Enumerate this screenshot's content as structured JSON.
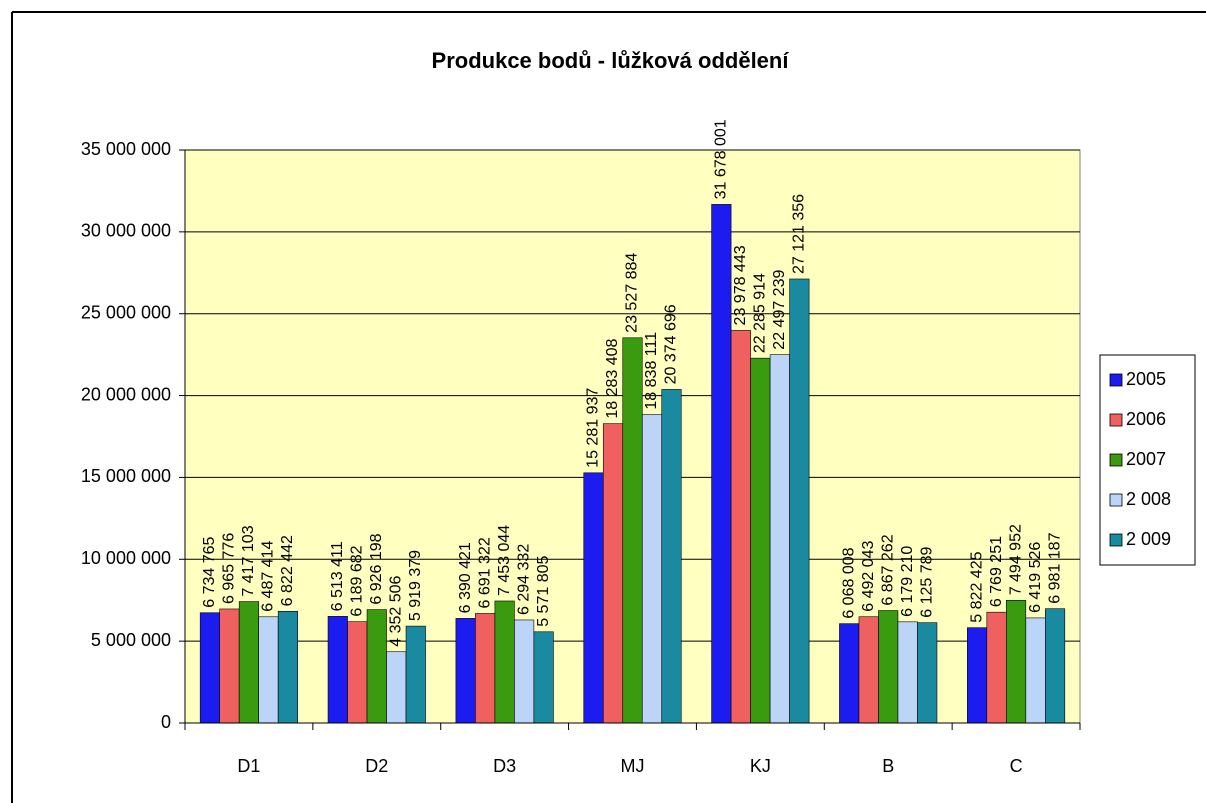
{
  "chart_data": {
    "type": "bar",
    "title": "Produkce bodů - lůžková oddělení",
    "categories": [
      "D1",
      "D2",
      "D3",
      "MJ",
      "KJ",
      "B",
      "C"
    ],
    "series": [
      {
        "name": "2005",
        "color": "#1c1cf0",
        "label_color": "#000000",
        "values": [
          6734765,
          6513411,
          6390421,
          15281937,
          31678001,
          6068008,
          5822425
        ],
        "value_labels": [
          "6 734 765",
          "6 513 411",
          "6 390 421",
          "15 281 937",
          "31 678 001",
          "6 068 008",
          "5 822 425"
        ]
      },
      {
        "name": "2006",
        "color": "#f06060",
        "label_color": "#000000",
        "values": [
          6965776,
          6189682,
          6691322,
          18283408,
          23978443,
          6492043,
          6769251
        ],
        "value_labels": [
          "6 965 776",
          "6 189 682",
          "6 691 322",
          "18 283 408",
          "23 978 443",
          "6 492 043",
          "6 769 251"
        ]
      },
      {
        "name": "2007",
        "color": "#3a9a10",
        "label_color": "#000000",
        "values": [
          7417103,
          6926198,
          7453044,
          23527884,
          22285914,
          6867262,
          7494952
        ],
        "value_labels": [
          "7 417 103",
          "6 926 198",
          "7 453 044",
          "23 527 884",
          "22 285 914",
          "6 867 262",
          "7 494 952"
        ]
      },
      {
        "name": "2 008",
        "color": "#bcd4f8",
        "label_color": "#000000",
        "values": [
          6487414,
          4352506,
          6294332,
          18838111,
          22497239,
          6179210,
          6419526
        ],
        "value_labels": [
          "6 487 414",
          "4 352 506",
          "6 294 332",
          "18 838 111",
          "22 497 239",
          "6 179 210",
          "6 419 526"
        ]
      },
      {
        "name": "2 009",
        "color": "#1a8aa0",
        "label_color": "#1a8aa0",
        "values": [
          6822442,
          5919379,
          5571805,
          20374696,
          27121356,
          6125789,
          6981187
        ],
        "value_labels": [
          "6 822 442",
          "5 919 379",
          "5 571 805",
          "20 374 696",
          "27 121 356",
          "6 125 789",
          "6 981 187"
        ]
      }
    ],
    "ylim": [
      0,
      35000000
    ],
    "yticks": [
      0,
      {
        "value": 5000000,
        "label": "5 000 000"
      },
      {
        "value": 10000000,
        "label": "10 000 000"
      },
      {
        "value": 15000000,
        "label": "15 000 000"
      },
      {
        "value": 20000000,
        "label": "20 000 000"
      },
      {
        "value": 25000000,
        "label": "25 000 000"
      },
      {
        "value": 30000000,
        "label": "30 000 000"
      },
      {
        "value": 35000000,
        "label": "35 000 000"
      }
    ],
    "grid": true,
    "legend": "right",
    "plot_background": "#ffffc0"
  }
}
